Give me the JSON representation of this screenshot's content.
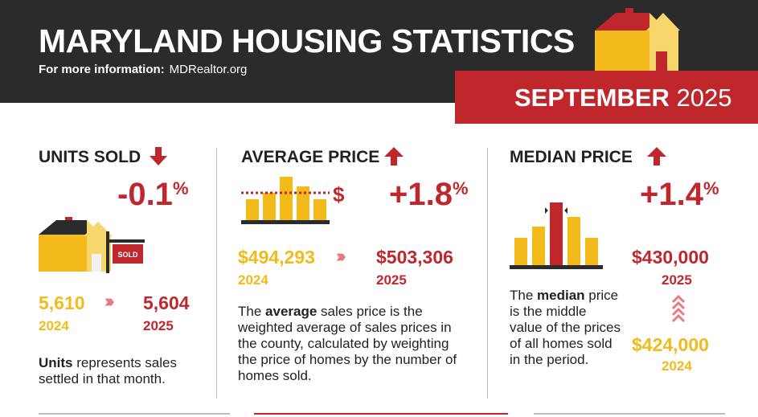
{
  "header": {
    "title": "MARYLAND HOUSING STATISTICS",
    "more_info_label": "For more information:",
    "more_info_url": "MDRealtor.org",
    "month": "SEPTEMBER",
    "year": "2025"
  },
  "units_sold": {
    "title": "UNITS SOLD",
    "direction": "down",
    "change_value": "-0.1",
    "change_unit": "%",
    "sign_text": "SOLD",
    "prior_value": "5,610",
    "prior_year": "2024",
    "current_value": "5,604",
    "current_year": "2025",
    "desc_bold": "Units",
    "desc_rest": " represents sales settled in that month."
  },
  "average_price": {
    "title": "AVERAGE PRICE",
    "direction": "up",
    "change_value": "+1.8",
    "change_unit": "%",
    "dollar_sign": "$",
    "prior_value": "$494,293",
    "prior_year": "2024",
    "current_value": "$503,306",
    "current_year": "2025",
    "desc_pre": "The ",
    "desc_bold": "average",
    "desc_rest": " sales price is the weighted average of sales prices in the county, calculated by weighting the price of homes by the number of homes sold."
  },
  "median_price": {
    "title": "MEDIAN PRICE",
    "direction": "up",
    "change_value": "+1.4",
    "change_unit": "%",
    "current_value": "$430,000",
    "current_year": "2025",
    "prior_value": "$424,000",
    "prior_year": "2024",
    "desc_pre": "The ",
    "desc_bold": "median",
    "desc_rest": " price is the middle value of the prices of all homes sold in the period."
  },
  "colors": {
    "red": "#c0272d",
    "gold": "#f2bb1b",
    "dark": "#2b2b2b"
  }
}
